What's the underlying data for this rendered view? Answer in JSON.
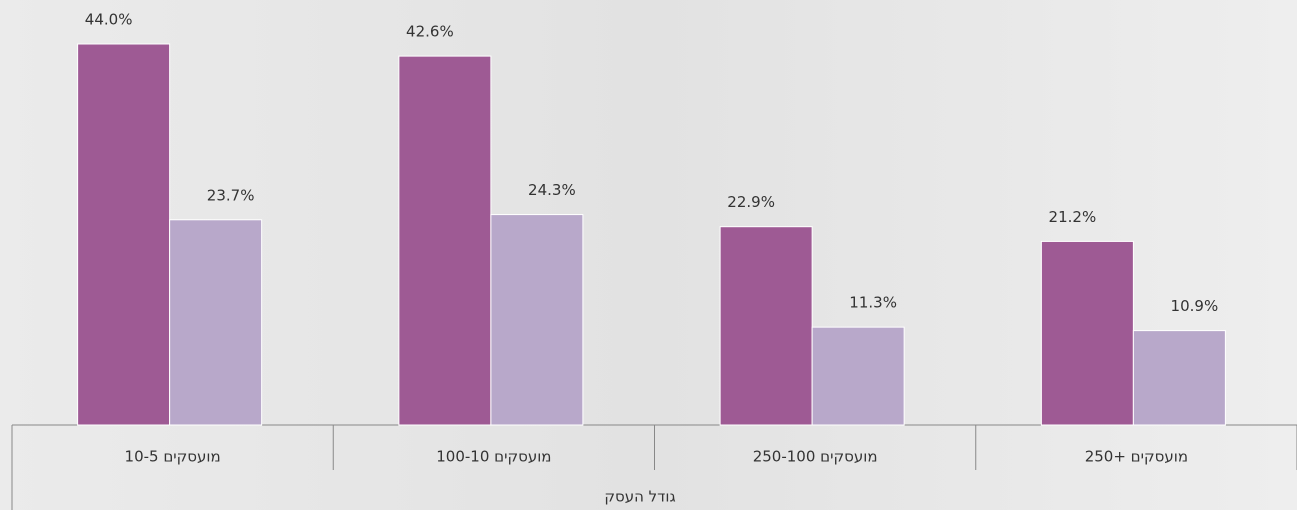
{
  "chart_data": {
    "type": "bar",
    "categories": [
      "10-5 מועסקים",
      "100-10 מועסקים",
      "250-100 מועסקים",
      "250+ מועסקים"
    ],
    "x_label": "גודל העסק",
    "series": [
      {
        "color": "#9e5a94",
        "values": [
          44.0,
          42.6,
          22.9,
          21.2
        ],
        "value_labels": [
          "44.0%",
          "42.6%",
          "22.9%",
          "21.2%"
        ]
      },
      {
        "color": "#b8a8ca",
        "values": [
          23.7,
          24.3,
          11.3,
          10.9
        ],
        "value_labels": [
          "23.7%",
          "24.3%",
          "11.3%",
          "10.9%"
        ]
      }
    ]
  }
}
